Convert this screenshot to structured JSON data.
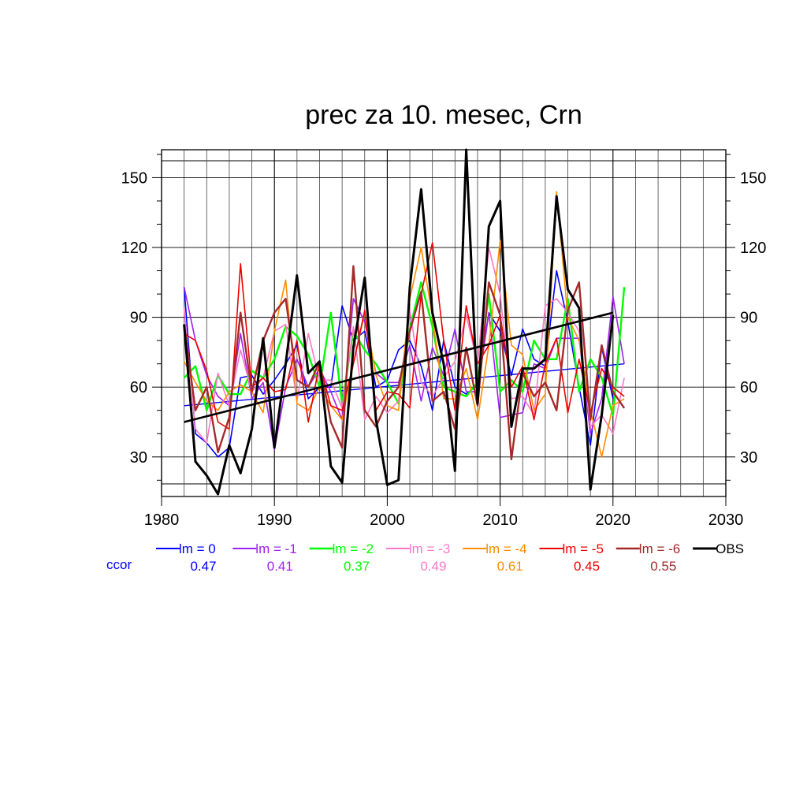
{
  "chart_data": {
    "type": "line",
    "title": "prec za 10. mesec, Crn",
    "xlim": [
      1980,
      2030
    ],
    "ylim": [
      13,
      162
    ],
    "x_ticks": [
      1980,
      1990,
      2000,
      2010,
      2020,
      2030
    ],
    "y_ticks": [
      30,
      60,
      90,
      120,
      150
    ],
    "grid": true,
    "ccor_label": "ccor",
    "years": [
      1982,
      1983,
      1984,
      1985,
      1986,
      1987,
      1988,
      1989,
      1990,
      1991,
      1992,
      1993,
      1994,
      1995,
      1996,
      1997,
      1998,
      1999,
      2000,
      2001,
      2002,
      2003,
      2004,
      2005,
      2006,
      2007,
      2008,
      2009,
      2010,
      2011,
      2012,
      2013,
      2014,
      2015,
      2016,
      2017,
      2018,
      2019,
      2020,
      2021
    ],
    "series": [
      {
        "name": "lm = 0",
        "color": "#0000ff",
        "width": 1.6,
        "ccor": "0.47",
        "trend": [
          [
            1982,
            52
          ],
          [
            2021,
            70
          ]
        ],
        "values": [
          103,
          40,
          36,
          30,
          34,
          64,
          65,
          57,
          63,
          70,
          78,
          55,
          60,
          60,
          95,
          80,
          84,
          60,
          63,
          76,
          80,
          69,
          50,
          80,
          60,
          57,
          61,
          92,
          84,
          65,
          85,
          72,
          69,
          110,
          88,
          60,
          35,
          77,
          55,
          null
        ]
      },
      {
        "name": "lm = -1",
        "color": "#a020f0",
        "width": 1.6,
        "ccor": "0.41",
        "values": [
          103,
          80,
          65,
          56,
          52,
          83,
          55,
          62,
          33,
          60,
          72,
          60,
          68,
          58,
          46,
          98,
          88,
          66,
          62,
          62,
          78,
          54,
          77,
          65,
          85,
          58,
          58,
          92,
          47,
          48,
          49,
          70,
          68,
          81,
          81,
          81,
          40,
          55,
          99,
          70
        ]
      },
      {
        "name": "lm = -2",
        "color": "#00ff00",
        "width": 2.4,
        "ccor": "0.37",
        "values": [
          64,
          69,
          50,
          65,
          57,
          57,
          67,
          64,
          72,
          86,
          82,
          74,
          60,
          92,
          53,
          84,
          76,
          70,
          62,
          53,
          85,
          105,
          86,
          60,
          58,
          56,
          62,
          100,
          58,
          63,
          58,
          80,
          72,
          72,
          98,
          58,
          72,
          64,
          48,
          103
        ]
      },
      {
        "name": "lm = -3",
        "color": "#ff77c8",
        "width": 1.6,
        "ccor": "0.49",
        "values": [
          94,
          42,
          36,
          66,
          52,
          76,
          58,
          64,
          84,
          87,
          54,
          83,
          63,
          63,
          51,
          86,
          46,
          56,
          49,
          54,
          93,
          62,
          56,
          64,
          71,
          91,
          70,
          120,
          100,
          55,
          56,
          48,
          95,
          98,
          92,
          84,
          43,
          48,
          40,
          64
        ]
      },
      {
        "name": "lm = -4",
        "color": "#ff8c00",
        "width": 1.6,
        "ccor": "0.61",
        "values": [
          71,
          62,
          54,
          50,
          58,
          61,
          58,
          49,
          84,
          106,
          53,
          50,
          60,
          52,
          46,
          70,
          92,
          65,
          52,
          50,
          98,
          120,
          90,
          55,
          55,
          68,
          46,
          78,
          123,
          78,
          74,
          50,
          57,
          144,
          90,
          80,
          50,
          30,
          52,
          55
        ]
      },
      {
        "name": "lm = -5",
        "color": "#ee0000",
        "width": 1.6,
        "ccor": "0.45",
        "values": [
          83,
          80,
          67,
          45,
          42,
          113,
          60,
          64,
          58,
          59,
          80,
          45,
          70,
          52,
          50,
          70,
          93,
          50,
          58,
          57,
          51,
          100,
          122,
          80,
          50,
          95,
          70,
          78,
          91,
          60,
          69,
          46,
          70,
          81,
          49,
          72,
          49,
          68,
          60,
          56
        ]
      },
      {
        "name": "lm = -6",
        "color": "#a52a2a",
        "width": 2.4,
        "ccor": "0.55",
        "values": [
          87,
          50,
          60,
          32,
          47,
          92,
          58,
          80,
          92,
          98,
          63,
          60,
          71,
          45,
          34,
          112,
          50,
          43,
          54,
          60,
          84,
          101,
          54,
          58,
          42,
          77,
          52,
          105,
          91,
          29,
          66,
          56,
          62,
          50,
          93,
          105,
          46,
          78,
          58,
          51
        ]
      },
      {
        "name": "OBS",
        "color": "#000000",
        "width": 3,
        "ccor": "",
        "trend": [
          [
            1982,
            45
          ],
          [
            2020,
            92
          ]
        ],
        "values": [
          87,
          28,
          22,
          14,
          35,
          23,
          42,
          81,
          34,
          70,
          108,
          66,
          71,
          26,
          19,
          77,
          107,
          46,
          18,
          20,
          103,
          145,
          92,
          70,
          24,
          162,
          53,
          129,
          140,
          43,
          68,
          68,
          72,
          142,
          102,
          94,
          16,
          48,
          91,
          null
        ]
      }
    ]
  }
}
